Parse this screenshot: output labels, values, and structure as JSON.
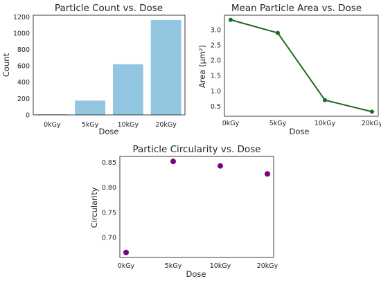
{
  "chart_data": [
    {
      "type": "bar",
      "title": "Particle Count vs. Dose",
      "xlabel": "Dose",
      "ylabel": "Count",
      "categories": [
        "0kGy",
        "5kGy",
        "10kGy",
        "20kGy"
      ],
      "values": [
        8,
        175,
        620,
        1160
      ],
      "ylim": [
        0,
        1220
      ],
      "yticks": [
        0,
        200,
        400,
        600,
        800,
        1000,
        1200
      ],
      "grid": false,
      "color": "#92c6e0"
    },
    {
      "type": "line",
      "title": "Mean Particle Area vs. Dose",
      "xlabel": "Dose",
      "ylabel": "Area (µm²)",
      "categories": [
        "0kGy",
        "5kGy",
        "10kGy",
        "20kGy"
      ],
      "values": [
        3.33,
        2.9,
        0.7,
        0.32
      ],
      "ylim": [
        0.17,
        3.48
      ],
      "yticks": [
        0.5,
        1.0,
        1.5,
        2.0,
        2.5,
        3.0
      ],
      "grid": false,
      "color": "#1a6b1a"
    },
    {
      "type": "scatter",
      "title": "Particle Circularity vs. Dose",
      "xlabel": "Dose",
      "ylabel": "Circularity",
      "categories": [
        "0kGy",
        "5kGy",
        "10kGy",
        "20kGy"
      ],
      "values": [
        0.67,
        0.852,
        0.843,
        0.827
      ],
      "ylim": [
        0.66,
        0.862
      ],
      "yticks": [
        0.7,
        0.75,
        0.8,
        0.85
      ],
      "grid": false,
      "color": "#800080"
    }
  ]
}
